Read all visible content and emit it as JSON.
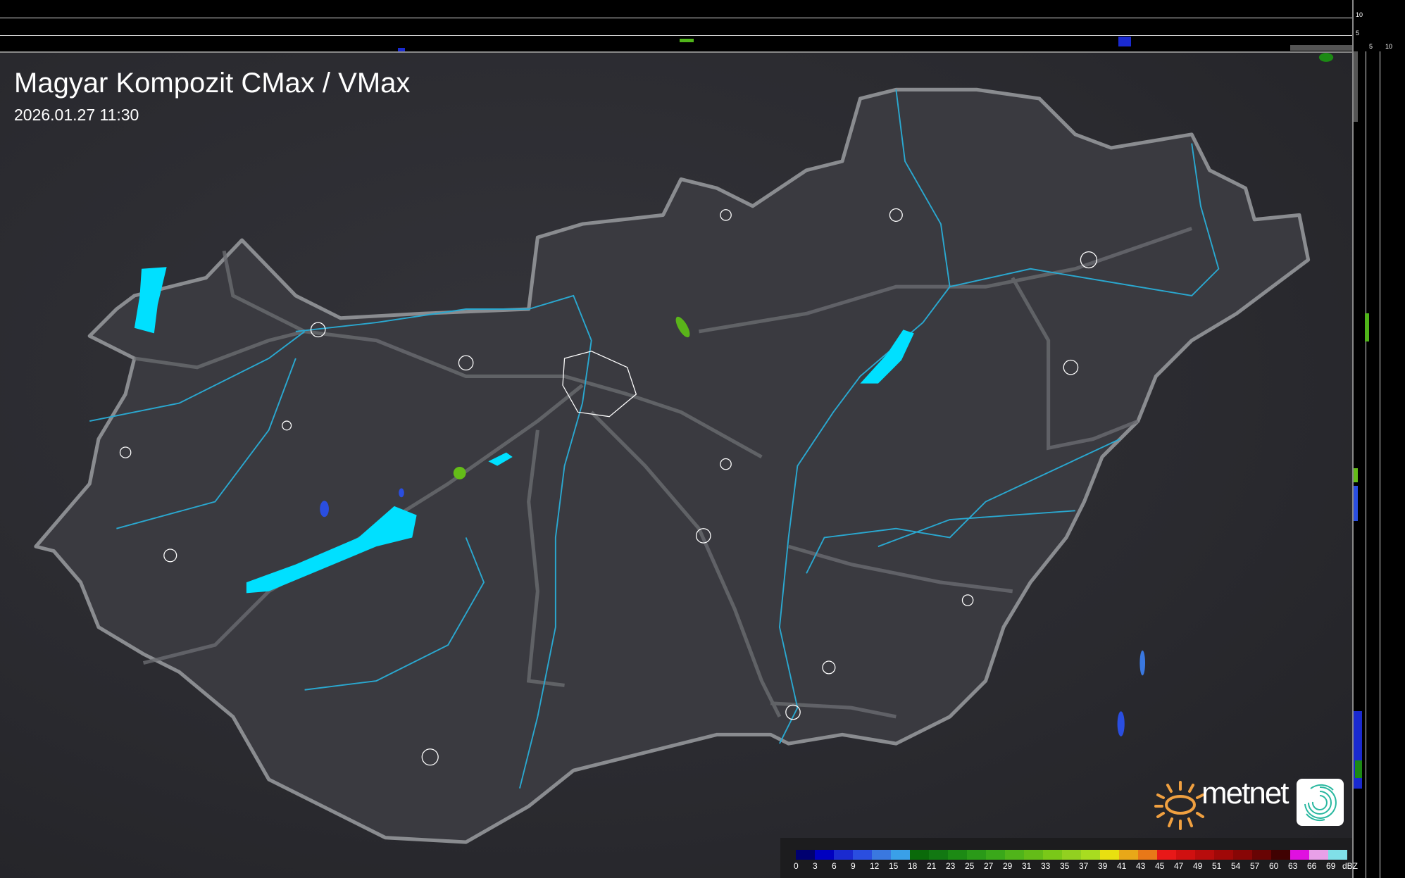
{
  "header": {
    "title": "Magyar Kompozit CMax / VMax",
    "datetime": "2026.01.27 11:30"
  },
  "profile_axes": {
    "top_ticks": [
      "10",
      "5"
    ],
    "right_ticks": [
      "5",
      "10"
    ]
  },
  "legend": {
    "unit": "dBZ",
    "labels": [
      "0",
      "3",
      "6",
      "9",
      "12",
      "15",
      "18",
      "21",
      "23",
      "25",
      "27",
      "29",
      "31",
      "33",
      "35",
      "37",
      "39",
      "41",
      "43",
      "45",
      "47",
      "49",
      "51",
      "54",
      "57",
      "60",
      "63",
      "66",
      "69"
    ],
    "colors": [
      "#000070",
      "#0000c0",
      "#1a2ad0",
      "#2a4ee0",
      "#3a78e0",
      "#3aa0e8",
      "#0a6a0a",
      "#127812",
      "#1c8a14",
      "#2a9a18",
      "#3aa81a",
      "#50b41a",
      "#64bc18",
      "#7ac818",
      "#92d020",
      "#a8dc20",
      "#e8e010",
      "#e8a818",
      "#e87818",
      "#e81818",
      "#d01010",
      "#b80c0c",
      "#a00808",
      "#880606",
      "#680404",
      "#400202",
      "#e010e0",
      "#e8a0e8",
      "#80e0e8"
    ]
  },
  "branding": {
    "logo_text": "metnet",
    "sun_color": "#f0a040",
    "app_icon": "swirl-icon"
  },
  "map_colors": {
    "border": "#8a8c90",
    "water": "#00e0ff",
    "rivers": "#2aa8d0",
    "cities": "#ffffff"
  }
}
